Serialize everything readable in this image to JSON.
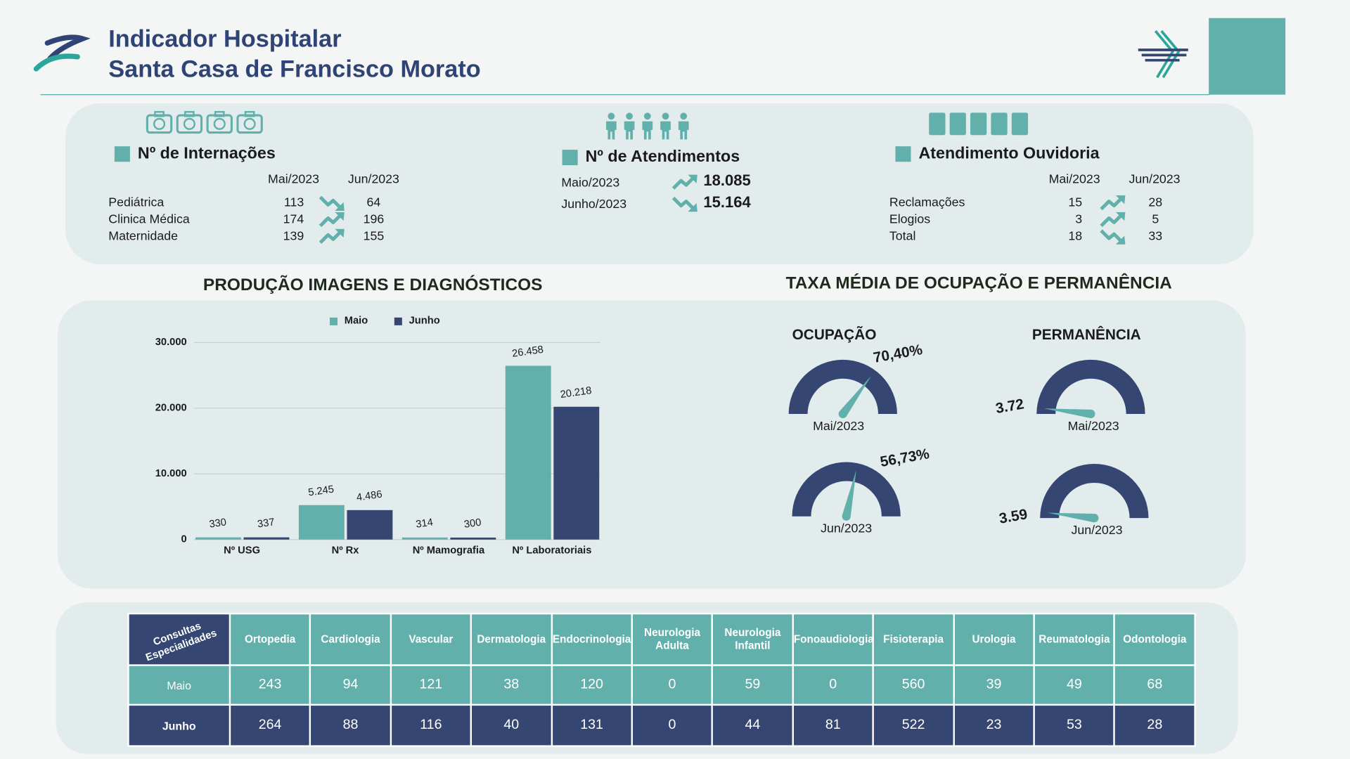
{
  "header": {
    "title": [
      "Indicador Hospitalar",
      "Santa Casa de Francisco Morato"
    ]
  },
  "internacoes": {
    "title": "Nº de Internações",
    "columns": [
      "Mai/2023",
      "Jun/2023"
    ],
    "rows": [
      {
        "label": "Pediátrica",
        "values": [
          113,
          64
        ],
        "trend": "down"
      },
      {
        "label": "Clinica Médica",
        "values": [
          174,
          196
        ],
        "trend": "up"
      },
      {
        "label": "Maternidade",
        "values": [
          139,
          155
        ],
        "trend": "up"
      }
    ]
  },
  "atendimentos": {
    "title": "Nº de Atendimentos",
    "rows": [
      {
        "label": "Maio/2023",
        "value": "18.085",
        "trend": "up"
      },
      {
        "label": "Junho/2023",
        "value": "15.164",
        "trend": "down"
      }
    ]
  },
  "ouvidoria": {
    "title": "Atendimento Ouvidoria",
    "columns": [
      "Mai/2023",
      "Jun/2023"
    ],
    "rows": [
      {
        "label": "Reclamações",
        "values": [
          15,
          28
        ],
        "trend": "up"
      },
      {
        "label": "Elogios",
        "values": [
          3,
          5
        ],
        "trend": "up"
      },
      {
        "label": "Total",
        "values": [
          18,
          33
        ],
        "trend": "down"
      }
    ]
  },
  "chart_data": [
    {
      "type": "bar",
      "title": "PRODUÇÃO IMAGENS E DIAGNÓSTICOS",
      "categories": [
        "Nº USG",
        "Nº  Rx",
        "Nº Mamografia",
        "Nº Laboratoriais"
      ],
      "series": [
        {
          "name": "Maio",
          "color": "#62b0ab",
          "values": [
            330,
            5245,
            314,
            26458
          ],
          "value_labels": [
            "330",
            "5.245",
            "314",
            "26.458"
          ]
        },
        {
          "name": "Junho",
          "color": "#344671",
          "values": [
            337,
            4486,
            300,
            20218
          ],
          "value_labels": [
            "337",
            "4.486",
            "300",
            "20.218"
          ]
        }
      ],
      "ylim": [
        0,
        30000
      ],
      "yticks": [
        0,
        {
          "value": 10000,
          "label": "10.000"
        },
        {
          "value": 20000,
          "label": "20.000"
        },
        {
          "value": 30000,
          "label": "30.000"
        }
      ],
      "grid": true,
      "legend": "top"
    },
    {
      "type": "gauge",
      "title": "TAXA MÉDIA DE OCUPAÇÃO E PERMANÊNCIA",
      "groups": [
        {
          "title": "OCUPAÇÃO",
          "ylim": [
            0,
            100
          ],
          "color": "#344671",
          "needle_color": "#62b0ab",
          "items": [
            {
              "label": "Mai/2023",
              "value": 70.4,
              "value_label": "70,40%"
            },
            {
              "label": "Jun/2023",
              "value": 56.73,
              "value_label": "56,73%"
            }
          ]
        },
        {
          "title": "PERMANÊNCIA",
          "ylim": [
            0,
            100
          ],
          "color": "#344671",
          "needle_color": "#62b0ab",
          "items": [
            {
              "label": "Mai/2023",
              "value": 3.72
            },
            {
              "label": "Jun/2023",
              "value": 3.59
            }
          ]
        }
      ]
    }
  ],
  "table": {
    "corner": [
      "Consultas",
      "Especialidades"
    ],
    "columns": [
      "Ortopedia",
      "Cardiologia",
      "Vascular",
      "Dermatologia",
      "Endocrinologia",
      "Neurologia Adulta",
      "Neurologia Infantil",
      "Fonoaudiologia",
      "Fisioterapia",
      "Urologia",
      "Reumatologia",
      "Odontologia"
    ],
    "rows": [
      {
        "label": "Maio",
        "values": [
          243,
          94,
          121,
          38,
          120,
          0,
          59,
          0,
          560,
          39,
          49,
          68
        ]
      },
      {
        "label": "Junho",
        "values": [
          264,
          88,
          116,
          40,
          131,
          0,
          44,
          81,
          522,
          23,
          53,
          28
        ]
      }
    ]
  }
}
